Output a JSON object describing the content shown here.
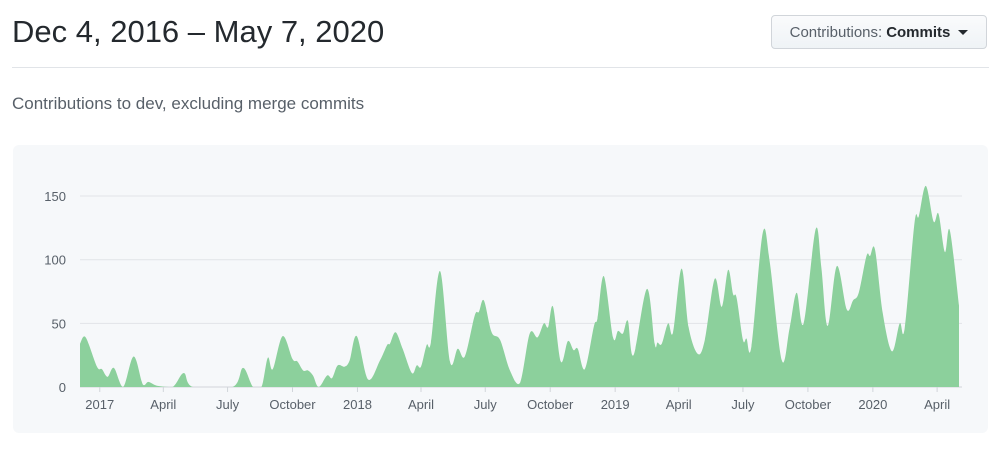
{
  "header": {
    "title": "Dec 4, 2016 – May 7, 2020",
    "dropdown_prefix": "Contributions:",
    "dropdown_value": "Commits"
  },
  "subtitle": "Contributions to dev, excluding merge commits",
  "colors": {
    "area": "#8cd09c",
    "panel": "#f6f8fa",
    "grid": "#e1e4e8"
  },
  "chart_data": {
    "type": "area",
    "title": "",
    "xlabel": "",
    "ylabel": "",
    "ylim": [
      0,
      165
    ],
    "xlim": [
      "2016-12-04",
      "2020-05-02"
    ],
    "grid": true,
    "y_ticks": [
      0,
      50,
      100,
      150
    ],
    "x_ticks": [
      {
        "date": "2017-01-01",
        "label": "2017"
      },
      {
        "date": "2017-04-01",
        "label": "April"
      },
      {
        "date": "2017-07-01",
        "label": "July"
      },
      {
        "date": "2017-10-01",
        "label": "October"
      },
      {
        "date": "2018-01-01",
        "label": "2018"
      },
      {
        "date": "2018-04-01",
        "label": "April"
      },
      {
        "date": "2018-07-01",
        "label": "July"
      },
      {
        "date": "2018-10-01",
        "label": "October"
      },
      {
        "date": "2019-01-01",
        "label": "2019"
      },
      {
        "date": "2019-04-01",
        "label": "April"
      },
      {
        "date": "2019-07-01",
        "label": "July"
      },
      {
        "date": "2019-10-01",
        "label": "October"
      },
      {
        "date": "2020-01-01",
        "label": "2020"
      },
      {
        "date": "2020-04-01",
        "label": "April"
      }
    ],
    "series": [
      {
        "points": [
          [
            "2016-12-04",
            34
          ],
          [
            "2016-12-12",
            39
          ],
          [
            "2016-12-28",
            16
          ],
          [
            "2017-01-04",
            14
          ],
          [
            "2017-01-12",
            8
          ],
          [
            "2017-01-21",
            15
          ],
          [
            "2017-02-03",
            0
          ],
          [
            "2017-02-18",
            24
          ],
          [
            "2017-03-03",
            2
          ],
          [
            "2017-03-11",
            4
          ],
          [
            "2017-03-23",
            1
          ],
          [
            "2017-04-14",
            0
          ],
          [
            "2017-04-30",
            11
          ],
          [
            "2017-05-13",
            0
          ],
          [
            "2017-07-08",
            0
          ],
          [
            "2017-07-23",
            15
          ],
          [
            "2017-08-06",
            0
          ],
          [
            "2017-08-18",
            0
          ],
          [
            "2017-08-27",
            23
          ],
          [
            "2017-09-03",
            14
          ],
          [
            "2017-09-17",
            40
          ],
          [
            "2017-10-01",
            22
          ],
          [
            "2017-10-08",
            20
          ],
          [
            "2017-10-16",
            13
          ],
          [
            "2017-10-23",
            13
          ],
          [
            "2017-10-30",
            9
          ],
          [
            "2017-11-07",
            0
          ],
          [
            "2017-11-19",
            9
          ],
          [
            "2017-11-26",
            7
          ],
          [
            "2017-12-04",
            17
          ],
          [
            "2017-12-14",
            16
          ],
          [
            "2017-12-21",
            21
          ],
          [
            "2017-12-31",
            40
          ],
          [
            "2018-01-16",
            6
          ],
          [
            "2018-02-02",
            21
          ],
          [
            "2018-02-12",
            33
          ],
          [
            "2018-02-16",
            34
          ],
          [
            "2018-02-24",
            43
          ],
          [
            "2018-03-06",
            30
          ],
          [
            "2018-03-19",
            11
          ],
          [
            "2018-03-26",
            17
          ],
          [
            "2018-04-01",
            16
          ],
          [
            "2018-04-09",
            33
          ],
          [
            "2018-04-15",
            35
          ],
          [
            "2018-04-28",
            91
          ],
          [
            "2018-05-12",
            20
          ],
          [
            "2018-05-23",
            30
          ],
          [
            "2018-06-02",
            24
          ],
          [
            "2018-06-16",
            56
          ],
          [
            "2018-06-22",
            59
          ],
          [
            "2018-06-29",
            68
          ],
          [
            "2018-07-10",
            43
          ],
          [
            "2018-07-22",
            37
          ],
          [
            "2018-08-05",
            13
          ],
          [
            "2018-08-19",
            3
          ],
          [
            "2018-09-02",
            42
          ],
          [
            "2018-09-13",
            39
          ],
          [
            "2018-09-22",
            50
          ],
          [
            "2018-09-28",
            47
          ],
          [
            "2018-10-05",
            63
          ],
          [
            "2018-10-16",
            20
          ],
          [
            "2018-10-26",
            36
          ],
          [
            "2018-11-03",
            29
          ],
          [
            "2018-11-09",
            30
          ],
          [
            "2018-11-19",
            14
          ],
          [
            "2018-12-02",
            48
          ],
          [
            "2018-12-07",
            54
          ],
          [
            "2018-12-16",
            87
          ],
          [
            "2018-12-29",
            39
          ],
          [
            "2019-01-05",
            44
          ],
          [
            "2019-01-12",
            42
          ],
          [
            "2019-01-19",
            52
          ],
          [
            "2019-01-27",
            25
          ],
          [
            "2019-02-15",
            77
          ],
          [
            "2019-02-26",
            34
          ],
          [
            "2019-03-02",
            35
          ],
          [
            "2019-03-08",
            34
          ],
          [
            "2019-03-17",
            50
          ],
          [
            "2019-03-24",
            43
          ],
          [
            "2019-04-05",
            93
          ],
          [
            "2019-04-15",
            47
          ],
          [
            "2019-04-28",
            26
          ],
          [
            "2019-05-08",
            37
          ],
          [
            "2019-05-22",
            85
          ],
          [
            "2019-06-01",
            63
          ],
          [
            "2019-06-10",
            92
          ],
          [
            "2019-06-17",
            73
          ],
          [
            "2019-06-22",
            70
          ],
          [
            "2019-07-01",
            37
          ],
          [
            "2019-07-06",
            38
          ],
          [
            "2019-07-13",
            32
          ],
          [
            "2019-07-29",
            121
          ],
          [
            "2019-08-08",
            98
          ],
          [
            "2019-08-25",
            21
          ],
          [
            "2019-09-05",
            46
          ],
          [
            "2019-09-15",
            74
          ],
          [
            "2019-09-25",
            50
          ],
          [
            "2019-10-12",
            124
          ],
          [
            "2019-10-20",
            94
          ],
          [
            "2019-10-29",
            48
          ],
          [
            "2019-11-11",
            95
          ],
          [
            "2019-11-25",
            61
          ],
          [
            "2019-12-04",
            68
          ],
          [
            "2019-12-12",
            74
          ],
          [
            "2019-12-23",
            103
          ],
          [
            "2019-12-28",
            103
          ],
          [
            "2020-01-04",
            108
          ],
          [
            "2020-01-15",
            58
          ],
          [
            "2020-01-28",
            28
          ],
          [
            "2020-02-08",
            50
          ],
          [
            "2020-02-15",
            46
          ],
          [
            "2020-02-29",
            129
          ],
          [
            "2020-03-06",
            134
          ],
          [
            "2020-03-16",
            158
          ],
          [
            "2020-03-27",
            130
          ],
          [
            "2020-04-03",
            136
          ],
          [
            "2020-04-12",
            106
          ],
          [
            "2020-04-19",
            123
          ],
          [
            "2020-05-02",
            64
          ]
        ]
      }
    ]
  }
}
